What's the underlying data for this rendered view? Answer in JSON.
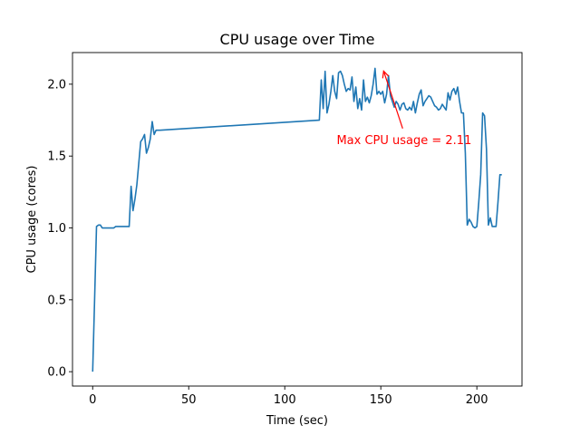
{
  "chart_data": {
    "type": "line",
    "title": "CPU usage over Time",
    "xlabel": "Time (sec)",
    "ylabel": "CPU usage (cores)",
    "xlim": [
      -10.5,
      223.5
    ],
    "ylim": [
      -0.1,
      2.22
    ],
    "xticks": [
      0,
      50,
      100,
      150,
      200
    ],
    "xtick_labels": [
      "0",
      "50",
      "100",
      "150",
      "200"
    ],
    "yticks": [
      0.0,
      0.5,
      1.0,
      1.5,
      2.0
    ],
    "ytick_labels": [
      "0.0",
      "0.5",
      "1.0",
      "1.5",
      "2.0"
    ],
    "grid": false,
    "series": [
      {
        "color": "#1f77b4",
        "x": [
          0,
          1,
          2,
          3,
          4,
          5,
          6,
          7,
          8,
          9,
          10,
          11,
          12,
          13,
          14,
          15,
          16,
          17,
          18,
          19,
          20,
          21,
          22,
          23,
          24,
          25,
          26,
          27,
          28,
          29,
          30,
          31,
          32,
          33,
          34,
          35,
          118,
          119,
          120,
          121,
          122,
          123,
          124,
          125,
          126,
          127,
          128,
          129,
          130,
          131,
          132,
          133,
          134,
          135,
          136,
          137,
          138,
          139,
          140,
          141,
          142,
          143,
          144,
          145,
          146,
          147,
          148,
          149,
          150,
          151,
          152,
          153,
          154,
          155,
          156,
          157,
          158,
          159,
          160,
          161,
          162,
          163,
          164,
          165,
          166,
          167,
          168,
          169,
          170,
          171,
          172,
          173,
          174,
          175,
          176,
          177,
          178,
          179,
          180,
          181,
          182,
          183,
          184,
          185,
          186,
          187,
          188,
          189,
          190,
          191,
          192,
          193,
          194,
          195,
          196,
          197,
          198,
          199,
          200,
          201,
          202,
          203,
          204,
          205,
          206,
          207,
          208,
          209,
          210,
          211,
          212,
          213
        ],
        "y": [
          0.0,
          0.5,
          1.01,
          1.02,
          1.02,
          1.0,
          1.0,
          1.0,
          1.0,
          1.0,
          1.0,
          1.0,
          1.01,
          1.01,
          1.01,
          1.01,
          1.01,
          1.01,
          1.01,
          1.01,
          1.29,
          1.12,
          1.2,
          1.3,
          1.45,
          1.6,
          1.62,
          1.65,
          1.52,
          1.56,
          1.62,
          1.74,
          1.65,
          1.68,
          1.68,
          1.68,
          1.75,
          2.03,
          1.83,
          2.09,
          1.8,
          1.86,
          1.95,
          2.06,
          1.95,
          1.9,
          2.08,
          2.09,
          2.06,
          2.0,
          1.95,
          1.97,
          1.96,
          2.05,
          1.88,
          1.98,
          1.83,
          1.9,
          1.82,
          2.03,
          1.88,
          1.91,
          1.87,
          1.92,
          2.0,
          2.11,
          1.93,
          1.95,
          1.93,
          1.95,
          1.87,
          1.93,
          2.06,
          1.92,
          1.88,
          1.84,
          1.88,
          1.86,
          1.82,
          1.86,
          1.87,
          1.83,
          1.82,
          1.84,
          1.82,
          1.88,
          1.8,
          1.87,
          1.93,
          1.96,
          1.85,
          1.88,
          1.9,
          1.92,
          1.91,
          1.88,
          1.85,
          1.84,
          1.82,
          1.83,
          1.86,
          1.84,
          1.82,
          1.94,
          1.89,
          1.95,
          1.97,
          1.93,
          1.98,
          1.88,
          1.8,
          1.8,
          1.52,
          1.02,
          1.06,
          1.04,
          1.01,
          1.0,
          1.01,
          1.18,
          1.37,
          1.8,
          1.78,
          1.55,
          1.02,
          1.07,
          1.01,
          1.01,
          1.01,
          1.18,
          1.37,
          1.37
        ]
      }
    ],
    "annotation": {
      "text": "Max CPU usage = 2.11",
      "color": "#ff0000",
      "point": [
        151,
        2.11
      ],
      "text_pos": [
        127,
        1.61
      ]
    }
  }
}
